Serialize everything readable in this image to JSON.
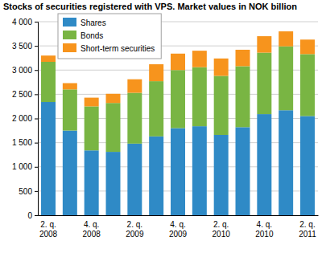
{
  "chart_data": {
    "type": "bar",
    "stacked": true,
    "grid": true,
    "legend": "upper left",
    "title": "Stocks of securities registered with VPS. Market values in NOK billion",
    "categories": [
      "2. q. 2008",
      null,
      "4. q. 2008",
      null,
      "2. q. 2009",
      null,
      "4. q. 2009",
      null,
      "2. q. 2010",
      null,
      "4. q. 2010",
      null,
      "2. q. 2011"
    ],
    "series": [
      {
        "name": "Shares",
        "color": "#2f8ac6",
        "values": [
          2340,
          1750,
          1340,
          1310,
          1480,
          1630,
          1800,
          1840,
          1660,
          1820,
          2090,
          2170,
          2050
        ]
      },
      {
        "name": "Bonds",
        "color": "#79b543",
        "values": [
          830,
          850,
          910,
          1010,
          1050,
          1140,
          1200,
          1220,
          1220,
          1260,
          1270,
          1320,
          1280
        ]
      },
      {
        "name": "Short-term securities",
        "color": "#f7941d",
        "values": [
          130,
          130,
          180,
          190,
          280,
          350,
          340,
          340,
          360,
          340,
          340,
          310,
          300
        ]
      }
    ],
    "ylim": [
      0,
      4000
    ],
    "yticks": [
      0,
      500,
      {
        "value": 1000,
        "label": "1 000"
      },
      {
        "value": 1500,
        "label": "1 500"
      },
      {
        "value": 2000,
        "label": "2 000"
      },
      {
        "value": 2500,
        "label": "2 500"
      },
      {
        "value": 3000,
        "label": "3 000"
      },
      {
        "value": 3500,
        "label": "3 500"
      },
      {
        "value": 4000,
        "label": "4 000"
      }
    ]
  }
}
